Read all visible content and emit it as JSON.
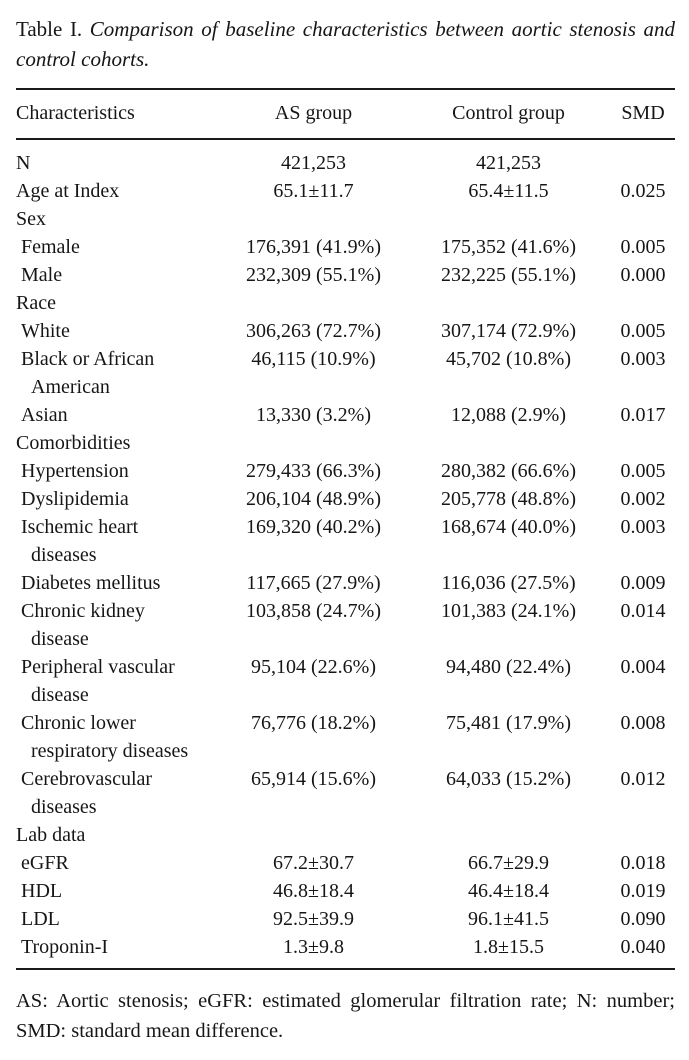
{
  "title": {
    "prefix": "Table I.",
    "caption": "Comparison of baseline characteristics between aortic stenosis and control cohorts."
  },
  "table": {
    "columns": [
      "Characteristics",
      "AS group",
      "Control group",
      "SMD"
    ],
    "rows": [
      {
        "label": "N",
        "indent": 0,
        "as": "421,253",
        "control": "421,253",
        "smd": ""
      },
      {
        "label": "Age at Index",
        "indent": 0,
        "as": "65.1±11.7",
        "control": "65.4±11.5",
        "smd": "0.025"
      },
      {
        "label": "Sex",
        "indent": 0,
        "as": "",
        "control": "",
        "smd": ""
      },
      {
        "label": "Female",
        "indent": 1,
        "as": "176,391 (41.9%)",
        "control": "175,352 (41.6%)",
        "smd": "0.005"
      },
      {
        "label": "Male",
        "indent": 1,
        "as": "232,309 (55.1%)",
        "control": "232,225 (55.1%)",
        "smd": "0.000"
      },
      {
        "label": "Race",
        "indent": 0,
        "as": "",
        "control": "",
        "smd": ""
      },
      {
        "label": "White",
        "indent": 1,
        "as": "306,263 (72.7%)",
        "control": "307,174 (72.9%)",
        "smd": "0.005"
      },
      {
        "label": "Black or African\nAmerican",
        "indent": 1,
        "as": "46,115 (10.9%)",
        "control": "45,702 (10.8%)",
        "smd": "0.003"
      },
      {
        "label": "Asian",
        "indent": 1,
        "as": "13,330 (3.2%)",
        "control": "12,088 (2.9%)",
        "smd": "0.017"
      },
      {
        "label": "Comorbidities",
        "indent": 0,
        "as": "",
        "control": "",
        "smd": ""
      },
      {
        "label": "Hypertension",
        "indent": 1,
        "as": "279,433 (66.3%)",
        "control": "280,382 (66.6%)",
        "smd": "0.005"
      },
      {
        "label": "Dyslipidemia",
        "indent": 1,
        "as": "206,104 (48.9%)",
        "control": "205,778 (48.8%)",
        "smd": "0.002"
      },
      {
        "label": "Ischemic heart\ndiseases",
        "indent": 1,
        "as": "169,320 (40.2%)",
        "control": "168,674 (40.0%)",
        "smd": "0.003"
      },
      {
        "label": "Diabetes mellitus",
        "indent": 1,
        "as": "117,665 (27.9%)",
        "control": "116,036 (27.5%)",
        "smd": "0.009"
      },
      {
        "label": "Chronic kidney\ndisease",
        "indent": 1,
        "as": "103,858 (24.7%)",
        "control": "101,383 (24.1%)",
        "smd": "0.014"
      },
      {
        "label": "Peripheral vascular\ndisease",
        "indent": 1,
        "as": "95,104 (22.6%)",
        "control": "94,480 (22.4%)",
        "smd": "0.004"
      },
      {
        "label": "Chronic lower\nrespiratory diseases",
        "indent": 1,
        "as": "76,776 (18.2%)",
        "control": "75,481 (17.9%)",
        "smd": "0.008"
      },
      {
        "label": "Cerebrovascular\ndiseases",
        "indent": 1,
        "as": "65,914 (15.6%)",
        "control": "64,033 (15.2%)",
        "smd": "0.012"
      },
      {
        "label": "Lab data",
        "indent": 0,
        "as": "",
        "control": "",
        "smd": ""
      },
      {
        "label": "eGFR",
        "indent": 1,
        "as": "67.2±30.7",
        "control": "66.7±29.9",
        "smd": "0.018"
      },
      {
        "label": "HDL",
        "indent": 1,
        "as": "46.8±18.4",
        "control": "46.4±18.4",
        "smd": "0.019"
      },
      {
        "label": "LDL",
        "indent": 1,
        "as": "92.5±39.9",
        "control": "96.1±41.5",
        "smd": "0.090"
      },
      {
        "label": "Troponin-I",
        "indent": 1,
        "as": "1.3±9.8",
        "control": "1.8±15.5",
        "smd": "0.040"
      }
    ]
  },
  "footnote": "AS: Aortic stenosis; eGFR: estimated glomerular filtration rate; N: number; SMD: standard mean difference."
}
